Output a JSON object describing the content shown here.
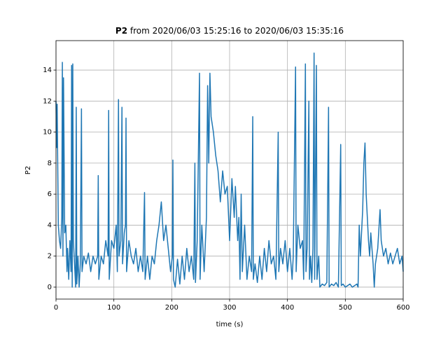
{
  "chart_data": {
    "type": "line",
    "title": {
      "bold": "P2",
      "text": "from 2020/06/03 15:25:16 to 2020/06/03 15:35:16"
    },
    "xlabel": "time (s)",
    "ylabel": "P2",
    "xlim": [
      0,
      600
    ],
    "ylim": [
      -0.77,
      15.9
    ],
    "xticks": [
      0,
      100,
      200,
      300,
      400,
      500,
      600
    ],
    "yticks": [
      0,
      2,
      4,
      6,
      8,
      10,
      12,
      14
    ],
    "grid": true,
    "series": [
      {
        "color": "#1f77b4",
        "x": [
          0,
          1,
          2,
          4,
          6,
          8,
          10,
          11,
          12,
          13,
          15,
          17,
          19,
          20,
          22,
          24,
          26,
          27,
          28,
          29,
          30,
          32,
          34,
          35,
          36,
          38,
          40,
          42,
          44,
          45,
          48,
          52,
          56,
          60,
          64,
          68,
          72,
          73,
          74,
          78,
          82,
          86,
          90,
          91,
          92,
          96,
          100,
          104,
          106,
          108,
          109,
          112,
          114,
          115,
          118,
          120,
          121,
          122,
          126,
          130,
          134,
          138,
          142,
          146,
          150,
          153,
          154,
          158,
          162,
          166,
          170,
          174,
          178,
          182,
          186,
          190,
          194,
          198,
          201,
          202,
          203,
          206,
          210,
          214,
          218,
          222,
          226,
          230,
          234,
          238,
          240,
          241,
          244,
          248,
          249,
          252,
          256,
          260,
          262,
          264,
          266,
          268,
          272,
          276,
          280,
          284,
          288,
          292,
          296,
          300,
          304,
          308,
          310,
          314,
          316,
          318,
          320,
          322,
          326,
          330,
          334,
          338,
          340,
          341,
          344,
          348,
          352,
          356,
          360,
          364,
          368,
          372,
          376,
          380,
          384,
          385,
          388,
          392,
          396,
          400,
          404,
          408,
          410,
          414,
          415,
          418,
          422,
          426,
          428,
          431,
          432,
          434,
          437,
          438,
          440,
          442,
          444,
          446,
          447,
          450,
          451,
          454,
          456,
          460,
          464,
          468,
          471,
          472,
          476,
          480,
          484,
          488,
          492,
          493,
          496,
          500,
          504,
          508,
          512,
          516,
          520,
          522,
          524,
          526,
          530,
          532,
          534,
          536,
          538,
          540,
          542,
          544,
          546,
          548,
          550,
          552,
          556,
          560,
          562,
          566,
          570,
          574,
          578,
          582,
          586,
          590,
          594,
          598,
          600
        ],
        "values": [
          12,
          9,
          11.8,
          4,
          3,
          2.5,
          4.5,
          14.5,
          2,
          13.5,
          3.5,
          4,
          1,
          2.5,
          0.5,
          3,
          1,
          14.3,
          0,
          14.4,
          3,
          1.5,
          0,
          11.6,
          0.2,
          2,
          0,
          1.5,
          11.5,
          1,
          2,
          1.5,
          2.2,
          1,
          2,
          1.5,
          2,
          7.2,
          0.5,
          2,
          1.5,
          3,
          2,
          11.4,
          0.5,
          3,
          2.5,
          4,
          1,
          12.1,
          2,
          3,
          11.6,
          1.5,
          3.5,
          4,
          10.9,
          1,
          3,
          2,
          1.5,
          2.5,
          1,
          2,
          1,
          6.1,
          0.5,
          2,
          0.5,
          2,
          1.5,
          3,
          4,
          5.5,
          3,
          4,
          2.5,
          1,
          2,
          8.2,
          0.5,
          0,
          1.8,
          0.2,
          2,
          0.5,
          2.5,
          1,
          2,
          0.5,
          8,
          0.3,
          3,
          13.8,
          0.5,
          4,
          1,
          4.5,
          13,
          8,
          13.8,
          11,
          10,
          8.5,
          7.5,
          5.5,
          7.5,
          6,
          6.5,
          3,
          7,
          4.5,
          6.5,
          3,
          4.5,
          0.5,
          6,
          1,
          4,
          0.5,
          2,
          1,
          11,
          0.5,
          1.5,
          0.3,
          2,
          0.5,
          2.5,
          1,
          3,
          1.5,
          2,
          0.5,
          10,
          1,
          2.5,
          1.5,
          3,
          1,
          2.5,
          0.5,
          2,
          14.2,
          1,
          4,
          2.5,
          3,
          0.5,
          14.4,
          1,
          2.5,
          12,
          0.5,
          2,
          0.3,
          2.5,
          15.1,
          0.5,
          14.3,
          0.5,
          2,
          0,
          0.2,
          0.1,
          0.3,
          11.6,
          0,
          0.2,
          0.1,
          0.3,
          0,
          9.2,
          0.1,
          0.2,
          0,
          0.1,
          0.2,
          0,
          0.1,
          0.2,
          0,
          4,
          2,
          5,
          8,
          9.3,
          6,
          4.5,
          3,
          2,
          3.5,
          2.5,
          1.5,
          0,
          1.5,
          2.5,
          5,
          3,
          2,
          2.5,
          1.5,
          2.2,
          1.5,
          2,
          2.5,
          1.5,
          2,
          1
        ]
      }
    ]
  }
}
